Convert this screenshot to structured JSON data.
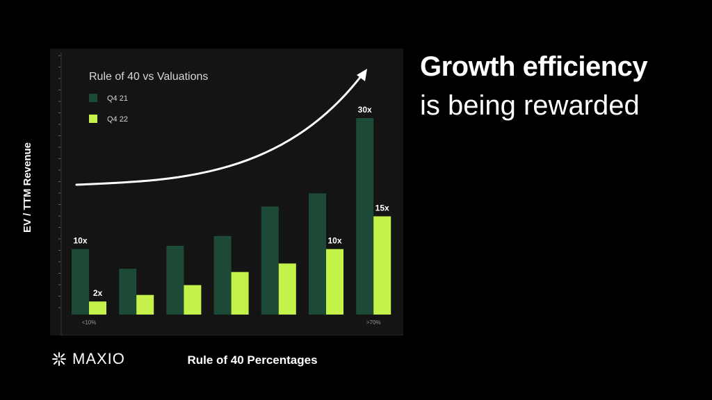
{
  "headline": {
    "line1": "Growth efficiency",
    "line2": "is being rewarded"
  },
  "brand": {
    "name": "MAXIO",
    "icon": "maxio-logo-icon"
  },
  "colors": {
    "background": "#000000",
    "panel": "#141414",
    "q421": "#1d4a36",
    "q422": "#c4f24a",
    "text": "#ffffff",
    "muted": "#9a9a9a"
  },
  "chart_data": {
    "type": "bar",
    "title": "Rule of 40 vs Valuations",
    "ylabel": "EV / TTM Revenue",
    "xlabel": "Rule of 40 Percentages",
    "categories": [
      "<10%",
      "",
      "",
      "",
      "",
      "",
      ">70%"
    ],
    "ylim": [
      0,
      34
    ],
    "legend_position": "top-left",
    "series": [
      {
        "name": "Q4 21",
        "values": [
          10,
          7,
          10.5,
          12,
          16.5,
          18.5,
          30
        ]
      },
      {
        "name": "Q4 22",
        "values": [
          2,
          3,
          4.5,
          6.5,
          7.8,
          10,
          15
        ]
      }
    ],
    "data_labels": [
      {
        "series": 0,
        "index": 0,
        "text": "10x"
      },
      {
        "series": 1,
        "index": 0,
        "text": "2x"
      },
      {
        "series": 1,
        "index": 5,
        "text": "10x"
      },
      {
        "series": 0,
        "index": 6,
        "text": "30x"
      },
      {
        "series": 1,
        "index": 6,
        "text": "15x"
      }
    ],
    "annotations": [
      "upward-trend-arrow"
    ],
    "grid": false
  }
}
